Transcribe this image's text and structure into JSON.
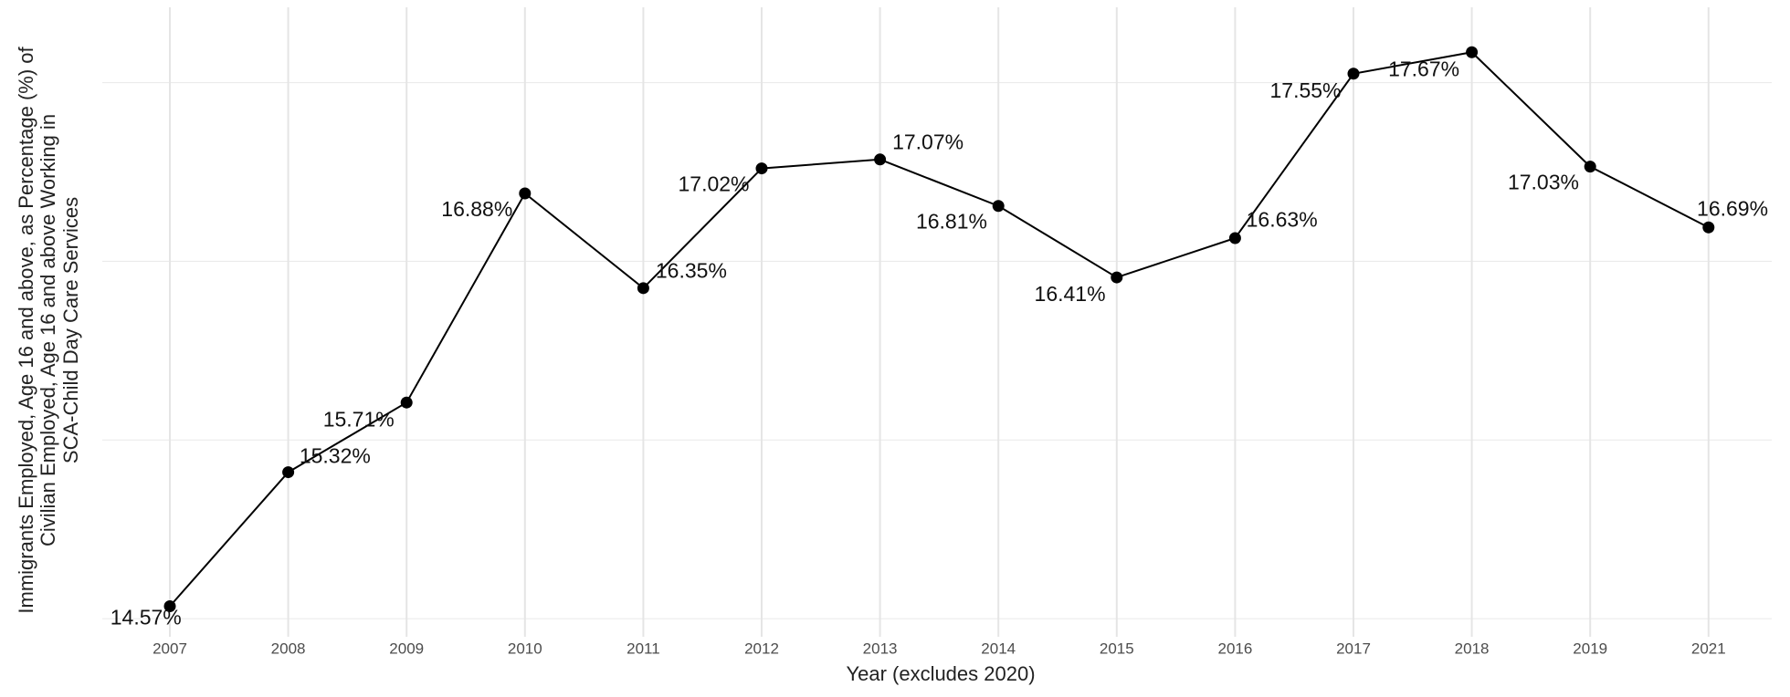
{
  "chart_data": {
    "type": "line",
    "x_label": "Year (excludes 2020)",
    "y_label": [
      "Immigrants Employed, Age 16 and above, as Percentage (%) of",
      "Civilian Employed, Age 16 and above Working in",
      "SCA-Child Day Care Services"
    ],
    "categories": [
      "2007",
      "2008",
      "2009",
      "2010",
      "2011",
      "2012",
      "2013",
      "2014",
      "2015",
      "2016",
      "2017",
      "2018",
      "2019",
      "2021"
    ],
    "values": [
      14.57,
      15.32,
      15.71,
      16.88,
      16.35,
      17.02,
      17.07,
      16.81,
      16.41,
      16.63,
      17.55,
      17.67,
      17.03,
      16.69
    ],
    "value_labels": [
      "14.57%",
      "15.32%",
      "15.71%",
      "16.88%",
      "16.35%",
      "17.02%",
      "17.07%",
      "16.81%",
      "16.41%",
      "16.63%",
      "17.55%",
      "17.67%",
      "17.03%",
      "16.69%"
    ],
    "color": "#000000",
    "ylim": [
      14.45,
      17.85
    ],
    "yticks": [
      14.5,
      15.5,
      16.5,
      17.5
    ],
    "grid": true
  }
}
